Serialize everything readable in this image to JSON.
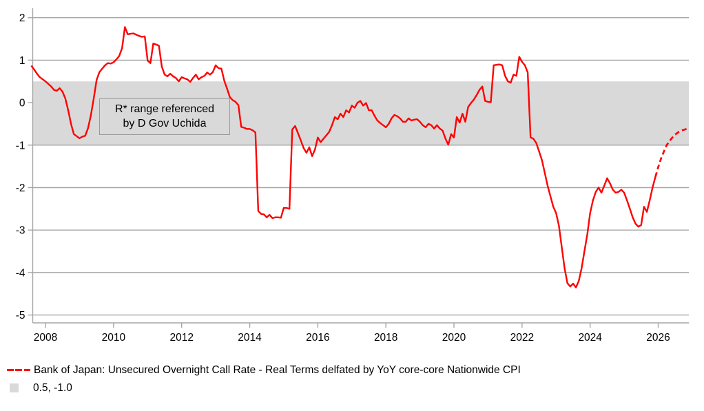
{
  "chart_data": {
    "type": "line",
    "title": "",
    "x_axis": {
      "min": 2007.625,
      "max": 2026.9,
      "ticks": [
        2008,
        2010,
        2012,
        2014,
        2016,
        2018,
        2020,
        2022,
        2024,
        2026
      ],
      "tick_labels": [
        "2008",
        "2010",
        "2012",
        "2014",
        "2016",
        "2018",
        "2020",
        "2022",
        "2024",
        "2026"
      ]
    },
    "y_axis": {
      "min": -5.185,
      "max": 2.222,
      "ticks": [
        2,
        1,
        0,
        -1,
        -2,
        -3,
        -4,
        -5
      ],
      "tick_labels": [
        "2",
        "1",
        "0",
        "-1",
        "-2",
        "-3",
        "-4",
        "-5"
      ],
      "gridline_values": [
        2,
        1,
        -1,
        -2,
        -3,
        -4,
        -5
      ]
    },
    "band": {
      "from": 0.5,
      "to": -1.0
    },
    "annotation": {
      "line1": "R* range referenced",
      "line2": "by D Gov Uchida"
    },
    "legend": {
      "position": "bottom-left",
      "series_label": "Bank of Japan: Unsecured Overnight Call Rate - Real Terms delfated by YoY core-core Nationwide CPI",
      "band_label": "0.5, -1.0"
    },
    "colors": {
      "line": "#ff0000",
      "band": "#d9d9d9",
      "grid": "#a6a6a6",
      "axis": "#a6a6a6",
      "text": "#000000"
    },
    "series": [
      {
        "dash_start": 2025.917,
        "points": [
          [
            2007.583,
            0.87
          ],
          [
            2007.667,
            0.78
          ],
          [
            2007.75,
            0.68
          ],
          [
            2007.833,
            0.6
          ],
          [
            2007.917,
            0.55
          ],
          [
            2008,
            0.5
          ],
          [
            2008.083,
            0.44
          ],
          [
            2008.167,
            0.38
          ],
          [
            2008.25,
            0.3
          ],
          [
            2008.333,
            0.28
          ],
          [
            2008.417,
            0.34
          ],
          [
            2008.5,
            0.26
          ],
          [
            2008.583,
            0.1
          ],
          [
            2008.667,
            -0.18
          ],
          [
            2008.75,
            -0.5
          ],
          [
            2008.833,
            -0.74
          ],
          [
            2008.917,
            -0.79
          ],
          [
            2009,
            -0.84
          ],
          [
            2009.083,
            -0.8
          ],
          [
            2009.167,
            -0.78
          ],
          [
            2009.25,
            -0.6
          ],
          [
            2009.333,
            -0.3
          ],
          [
            2009.417,
            0.1
          ],
          [
            2009.5,
            0.53
          ],
          [
            2009.583,
            0.72
          ],
          [
            2009.667,
            0.8
          ],
          [
            2009.75,
            0.88
          ],
          [
            2009.833,
            0.93
          ],
          [
            2009.917,
            0.92
          ],
          [
            2010,
            0.95
          ],
          [
            2010.083,
            1.02
          ],
          [
            2010.167,
            1.1
          ],
          [
            2010.25,
            1.28
          ],
          [
            2010.333,
            1.78
          ],
          [
            2010.417,
            1.61
          ],
          [
            2010.5,
            1.62
          ],
          [
            2010.583,
            1.63
          ],
          [
            2010.667,
            1.6
          ],
          [
            2010.75,
            1.57
          ],
          [
            2010.833,
            1.55
          ],
          [
            2010.917,
            1.56
          ],
          [
            2011,
            0.99
          ],
          [
            2011.083,
            0.93
          ],
          [
            2011.167,
            1.39
          ],
          [
            2011.25,
            1.37
          ],
          [
            2011.333,
            1.34
          ],
          [
            2011.417,
            0.85
          ],
          [
            2011.5,
            0.66
          ],
          [
            2011.583,
            0.62
          ],
          [
            2011.667,
            0.68
          ],
          [
            2011.75,
            0.62
          ],
          [
            2011.833,
            0.58
          ],
          [
            2011.917,
            0.5
          ],
          [
            2012,
            0.6
          ],
          [
            2012.083,
            0.57
          ],
          [
            2012.167,
            0.55
          ],
          [
            2012.25,
            0.49
          ],
          [
            2012.333,
            0.58
          ],
          [
            2012.417,
            0.66
          ],
          [
            2012.5,
            0.55
          ],
          [
            2012.583,
            0.6
          ],
          [
            2012.667,
            0.63
          ],
          [
            2012.75,
            0.71
          ],
          [
            2012.833,
            0.66
          ],
          [
            2012.917,
            0.72
          ],
          [
            2013,
            0.88
          ],
          [
            2013.083,
            0.81
          ],
          [
            2013.167,
            0.8
          ],
          [
            2013.25,
            0.52
          ],
          [
            2013.333,
            0.33
          ],
          [
            2013.417,
            0.13
          ],
          [
            2013.5,
            0.06
          ],
          [
            2013.583,
            0.02
          ],
          [
            2013.667,
            -0.06
          ],
          [
            2013.75,
            -0.57
          ],
          [
            2013.833,
            -0.59
          ],
          [
            2013.917,
            -0.62
          ],
          [
            2014,
            -0.62
          ],
          [
            2014.083,
            -0.65
          ],
          [
            2014.167,
            -0.7
          ],
          [
            2014.25,
            -2.55
          ],
          [
            2014.333,
            -2.62
          ],
          [
            2014.417,
            -2.63
          ],
          [
            2014.5,
            -2.7
          ],
          [
            2014.583,
            -2.64
          ],
          [
            2014.667,
            -2.72
          ],
          [
            2014.75,
            -2.7
          ],
          [
            2014.833,
            -2.7
          ],
          [
            2014.917,
            -2.71
          ],
          [
            2015,
            -2.48
          ],
          [
            2015.083,
            -2.48
          ],
          [
            2015.167,
            -2.5
          ],
          [
            2015.25,
            -0.63
          ],
          [
            2015.333,
            -0.55
          ],
          [
            2015.417,
            -0.72
          ],
          [
            2015.5,
            -0.89
          ],
          [
            2015.583,
            -1.07
          ],
          [
            2015.667,
            -1.18
          ],
          [
            2015.75,
            -1.05
          ],
          [
            2015.833,
            -1.26
          ],
          [
            2015.917,
            -1.1
          ],
          [
            2016,
            -0.82
          ],
          [
            2016.083,
            -0.93
          ],
          [
            2016.167,
            -0.85
          ],
          [
            2016.25,
            -0.77
          ],
          [
            2016.333,
            -0.69
          ],
          [
            2016.417,
            -0.53
          ],
          [
            2016.5,
            -0.34
          ],
          [
            2016.583,
            -0.39
          ],
          [
            2016.667,
            -0.26
          ],
          [
            2016.75,
            -0.34
          ],
          [
            2016.833,
            -0.18
          ],
          [
            2016.917,
            -0.23
          ],
          [
            2017,
            -0.07
          ],
          [
            2017.083,
            -0.12
          ],
          [
            2017.167,
            0.0
          ],
          [
            2017.25,
            0.04
          ],
          [
            2017.333,
            -0.07
          ],
          [
            2017.417,
            -0.01
          ],
          [
            2017.5,
            -0.18
          ],
          [
            2017.583,
            -0.18
          ],
          [
            2017.667,
            -0.31
          ],
          [
            2017.75,
            -0.42
          ],
          [
            2017.833,
            -0.48
          ],
          [
            2017.917,
            -0.53
          ],
          [
            2018,
            -0.58
          ],
          [
            2018.083,
            -0.5
          ],
          [
            2018.167,
            -0.37
          ],
          [
            2018.25,
            -0.29
          ],
          [
            2018.333,
            -0.32
          ],
          [
            2018.417,
            -0.37
          ],
          [
            2018.5,
            -0.45
          ],
          [
            2018.583,
            -0.45
          ],
          [
            2018.667,
            -0.37
          ],
          [
            2018.75,
            -0.42
          ],
          [
            2018.833,
            -0.4
          ],
          [
            2018.917,
            -0.39
          ],
          [
            2019,
            -0.45
          ],
          [
            2019.083,
            -0.53
          ],
          [
            2019.167,
            -0.58
          ],
          [
            2019.25,
            -0.5
          ],
          [
            2019.333,
            -0.53
          ],
          [
            2019.417,
            -0.61
          ],
          [
            2019.5,
            -0.53
          ],
          [
            2019.583,
            -0.61
          ],
          [
            2019.667,
            -0.66
          ],
          [
            2019.75,
            -0.85
          ],
          [
            2019.833,
            -0.99
          ],
          [
            2019.917,
            -0.74
          ],
          [
            2020,
            -0.82
          ],
          [
            2020.083,
            -0.34
          ],
          [
            2020.167,
            -0.47
          ],
          [
            2020.25,
            -0.26
          ],
          [
            2020.333,
            -0.45
          ],
          [
            2020.417,
            -0.1
          ],
          [
            2020.5,
            -0.01
          ],
          [
            2020.583,
            0.07
          ],
          [
            2020.667,
            0.18
          ],
          [
            2020.75,
            0.3
          ],
          [
            2020.833,
            0.38
          ],
          [
            2020.917,
            0.04
          ],
          [
            2021,
            0.02
          ],
          [
            2021.083,
            0.01
          ],
          [
            2021.167,
            0.88
          ],
          [
            2021.25,
            0.89
          ],
          [
            2021.333,
            0.9
          ],
          [
            2021.417,
            0.88
          ],
          [
            2021.5,
            0.63
          ],
          [
            2021.583,
            0.5
          ],
          [
            2021.667,
            0.47
          ],
          [
            2021.75,
            0.66
          ],
          [
            2021.833,
            0.63
          ],
          [
            2021.917,
            1.08
          ],
          [
            2022,
            0.96
          ],
          [
            2022.083,
            0.88
          ],
          [
            2022.167,
            0.71
          ],
          [
            2022.25,
            -0.82
          ],
          [
            2022.333,
            -0.85
          ],
          [
            2022.417,
            -0.95
          ],
          [
            2022.5,
            -1.15
          ],
          [
            2022.583,
            -1.35
          ],
          [
            2022.667,
            -1.65
          ],
          [
            2022.75,
            -1.95
          ],
          [
            2022.833,
            -2.2
          ],
          [
            2022.917,
            -2.45
          ],
          [
            2023,
            -2.6
          ],
          [
            2023.083,
            -2.9
          ],
          [
            2023.167,
            -3.4
          ],
          [
            2023.25,
            -3.9
          ],
          [
            2023.333,
            -4.25
          ],
          [
            2023.417,
            -4.33
          ],
          [
            2023.5,
            -4.26
          ],
          [
            2023.583,
            -4.35
          ],
          [
            2023.667,
            -4.2
          ],
          [
            2023.75,
            -3.9
          ],
          [
            2023.833,
            -3.5
          ],
          [
            2023.917,
            -3.1
          ],
          [
            2024,
            -2.6
          ],
          [
            2024.083,
            -2.3
          ],
          [
            2024.167,
            -2.1
          ],
          [
            2024.25,
            -2.0
          ],
          [
            2024.333,
            -2.12
          ],
          [
            2024.417,
            -1.95
          ],
          [
            2024.5,
            -1.78
          ],
          [
            2024.583,
            -1.9
          ],
          [
            2024.667,
            -2.05
          ],
          [
            2024.75,
            -2.12
          ],
          [
            2024.833,
            -2.1
          ],
          [
            2024.917,
            -2.05
          ],
          [
            2025,
            -2.12
          ],
          [
            2025.083,
            -2.3
          ],
          [
            2025.167,
            -2.5
          ],
          [
            2025.25,
            -2.7
          ],
          [
            2025.333,
            -2.85
          ],
          [
            2025.417,
            -2.92
          ],
          [
            2025.5,
            -2.88
          ],
          [
            2025.583,
            -2.45
          ],
          [
            2025.667,
            -2.57
          ],
          [
            2025.75,
            -2.3
          ],
          [
            2025.833,
            -2.0
          ],
          [
            2025.917,
            -1.75
          ],
          [
            2026,
            -1.52
          ],
          [
            2026.083,
            -1.32
          ],
          [
            2026.167,
            -1.15
          ],
          [
            2026.25,
            -1.0
          ],
          [
            2026.333,
            -0.9
          ],
          [
            2026.417,
            -0.82
          ],
          [
            2026.5,
            -0.75
          ],
          [
            2026.583,
            -0.7
          ],
          [
            2026.667,
            -0.66
          ],
          [
            2026.75,
            -0.64
          ],
          [
            2026.833,
            -0.62
          ]
        ]
      }
    ]
  },
  "legend": {
    "series_label": "Bank of Japan: Unsecured Overnight Call Rate - Real Terms delfated by YoY core-core Nationwide CPI",
    "band_label": "0.5, -1.0"
  }
}
